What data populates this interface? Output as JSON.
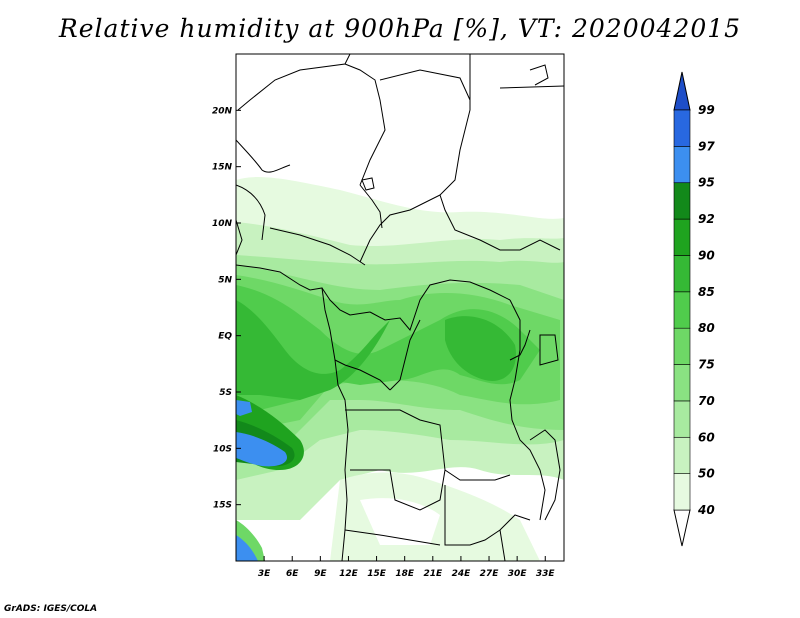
{
  "title": "Relative humidity at 900hPa [%], VT: 2020042015",
  "credit": "GrADS: IGES/COLA",
  "map": {
    "lon_range": [
      0,
      35
    ],
    "lat_range": [
      -20,
      25
    ],
    "x_ticks": [
      "3E",
      "6E",
      "9E",
      "12E",
      "15E",
      "18E",
      "21E",
      "24E",
      "27E",
      "30E",
      "33E"
    ],
    "y_ticks": [
      "20N",
      "15N",
      "10N",
      "5N",
      "EQ",
      "5S",
      "10S",
      "15S"
    ]
  },
  "colorbar": {
    "labels": [
      "40",
      "50",
      "60",
      "70",
      "75",
      "80",
      "85",
      "90",
      "92",
      "95",
      "97",
      "99"
    ],
    "colors": [
      "#ffffff",
      "#e6fae0",
      "#c8f2c0",
      "#a8eaa0",
      "#8ae282",
      "#6ed866",
      "#50cc4c",
      "#35b935",
      "#1fa31f",
      "#12891a",
      "#3c8ff0",
      "#2868e0",
      "#1e4ec8"
    ]
  }
}
